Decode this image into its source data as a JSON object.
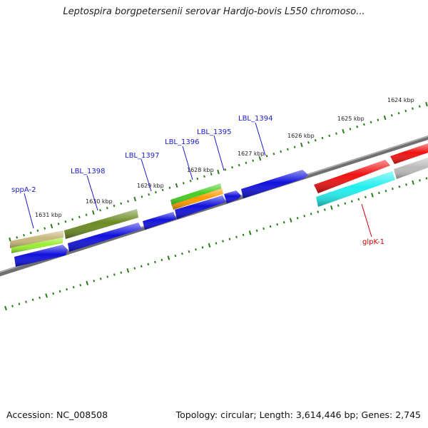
{
  "title": "Leptospira borgpetersenii serovar Hardjo-bovis L550 chromoso...",
  "footer": {
    "accession": "Accession: NC_008508",
    "stats": "Topology: circular; Length: 3,614,446 bp; Genes: 2,745"
  },
  "tick_labels": [
    "1624 kbp",
    "1625 kbp",
    "1626 kbp",
    "1627 kbp",
    "1628 kbp",
    "1629 kbp",
    "1630 kbp",
    "1631 kbp"
  ],
  "gene_labels": [
    {
      "text": "sppA-2",
      "color": "#1a1acc"
    },
    {
      "text": "LBL_1398",
      "color": "#1a1acc"
    },
    {
      "text": "LBL_1397",
      "color": "#1a1acc"
    },
    {
      "text": "LBL_1396",
      "color": "#1a1acc"
    },
    {
      "text": "LBL_1395",
      "color": "#1a1acc"
    },
    {
      "text": "LBL_1394",
      "color": "#1a1acc"
    },
    {
      "text": "glpK-1",
      "color": "#cc0000"
    }
  ],
  "colors": {
    "blue": "#1010dd",
    "olive": "#6b8a22",
    "tan": "#c7b77a",
    "lime": "#99ee33",
    "green": "#44cc22",
    "orange": "#ff9900",
    "red": "#ee1111",
    "cyan": "#22eeee",
    "gray": "#bbbbbb",
    "backbone": "#888888",
    "tick": "#2a7a1a"
  }
}
